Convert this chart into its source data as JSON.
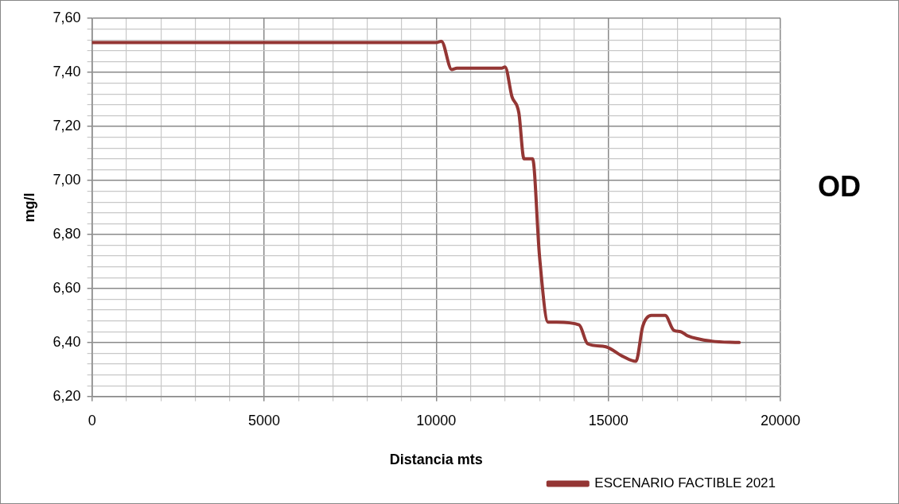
{
  "chart_data": {
    "type": "line",
    "xlabel": "Distancia mts",
    "ylabel": "mg/l",
    "annotations": [
      "OD"
    ],
    "xlim": [
      0,
      20000
    ],
    "xticks": [
      0,
      {
        "value": 1000,
        "label": null
      },
      {
        "value": 2000,
        "label": null
      },
      {
        "value": 3000,
        "label": null
      },
      {
        "value": 4000,
        "label": null
      },
      5000,
      {
        "value": 6000,
        "label": null
      },
      {
        "value": 7000,
        "label": null
      },
      {
        "value": 8000,
        "label": null
      },
      {
        "value": 9000,
        "label": null
      },
      10000,
      {
        "value": 11000,
        "label": null
      },
      {
        "value": 12000,
        "label": null
      },
      {
        "value": 13000,
        "label": null
      },
      {
        "value": 14000,
        "label": null
      },
      15000,
      {
        "value": 16000,
        "label": null
      },
      {
        "value": 17000,
        "label": null
      },
      {
        "value": 18000,
        "label": null
      },
      {
        "value": 19000,
        "label": null
      },
      20000
    ],
    "ylim": [
      6.2,
      7.6
    ],
    "yticks": [
      {
        "value": 6.2,
        "label": "6,20"
      },
      {
        "value": 6.24,
        "label": null
      },
      {
        "value": 6.28,
        "label": null
      },
      {
        "value": 6.32,
        "label": null
      },
      {
        "value": 6.36,
        "label": null
      },
      {
        "value": 6.4,
        "label": "6,40"
      },
      {
        "value": 6.44,
        "label": null
      },
      {
        "value": 6.48,
        "label": null
      },
      {
        "value": 6.52,
        "label": null
      },
      {
        "value": 6.56,
        "label": null
      },
      {
        "value": 6.6,
        "label": "6,60"
      },
      {
        "value": 6.64,
        "label": null
      },
      {
        "value": 6.68,
        "label": null
      },
      {
        "value": 6.72,
        "label": null
      },
      {
        "value": 6.76,
        "label": null
      },
      {
        "value": 6.8,
        "label": "6,80"
      },
      {
        "value": 6.84,
        "label": null
      },
      {
        "value": 6.88,
        "label": null
      },
      {
        "value": 6.92,
        "label": null
      },
      {
        "value": 6.96,
        "label": null
      },
      {
        "value": 7.0,
        "label": "7,00"
      },
      {
        "value": 7.04,
        "label": null
      },
      {
        "value": 7.08,
        "label": null
      },
      {
        "value": 7.12,
        "label": null
      },
      {
        "value": 7.16,
        "label": null
      },
      {
        "value": 7.2,
        "label": "7,20"
      },
      {
        "value": 7.24,
        "label": null
      },
      {
        "value": 7.28,
        "label": null
      },
      {
        "value": 7.32,
        "label": null
      },
      {
        "value": 7.36,
        "label": null
      },
      {
        "value": 7.4,
        "label": "7,40"
      },
      {
        "value": 7.44,
        "label": null
      },
      {
        "value": 7.48,
        "label": null
      },
      {
        "value": 7.52,
        "label": null
      },
      {
        "value": 7.56,
        "label": null
      },
      {
        "value": 7.6,
        "label": "7,60"
      }
    ],
    "grid": true,
    "legend": "bottom right",
    "marker": "none",
    "line_style": "solid",
    "series": [
      {
        "name": "ESCENARIO FACTIBLE 2021",
        "color": "#943634",
        "x": [
          0,
          10000,
          10150,
          10450,
          10600,
          11900,
          12000,
          12200,
          12400,
          12550,
          12800,
          13000,
          13250,
          13500,
          14150,
          14400,
          14900,
          15400,
          15800,
          16000,
          16250,
          16650,
          16900,
          17100,
          17300,
          18000,
          18800
        ],
        "values": [
          7.51,
          7.51,
          7.515,
          7.41,
          7.415,
          7.415,
          7.42,
          7.31,
          7.25,
          7.08,
          7.08,
          6.72,
          6.475,
          6.475,
          6.465,
          6.395,
          6.385,
          6.35,
          6.33,
          6.46,
          6.5,
          6.5,
          6.445,
          6.44,
          6.425,
          6.405,
          6.4
        ]
      }
    ]
  }
}
